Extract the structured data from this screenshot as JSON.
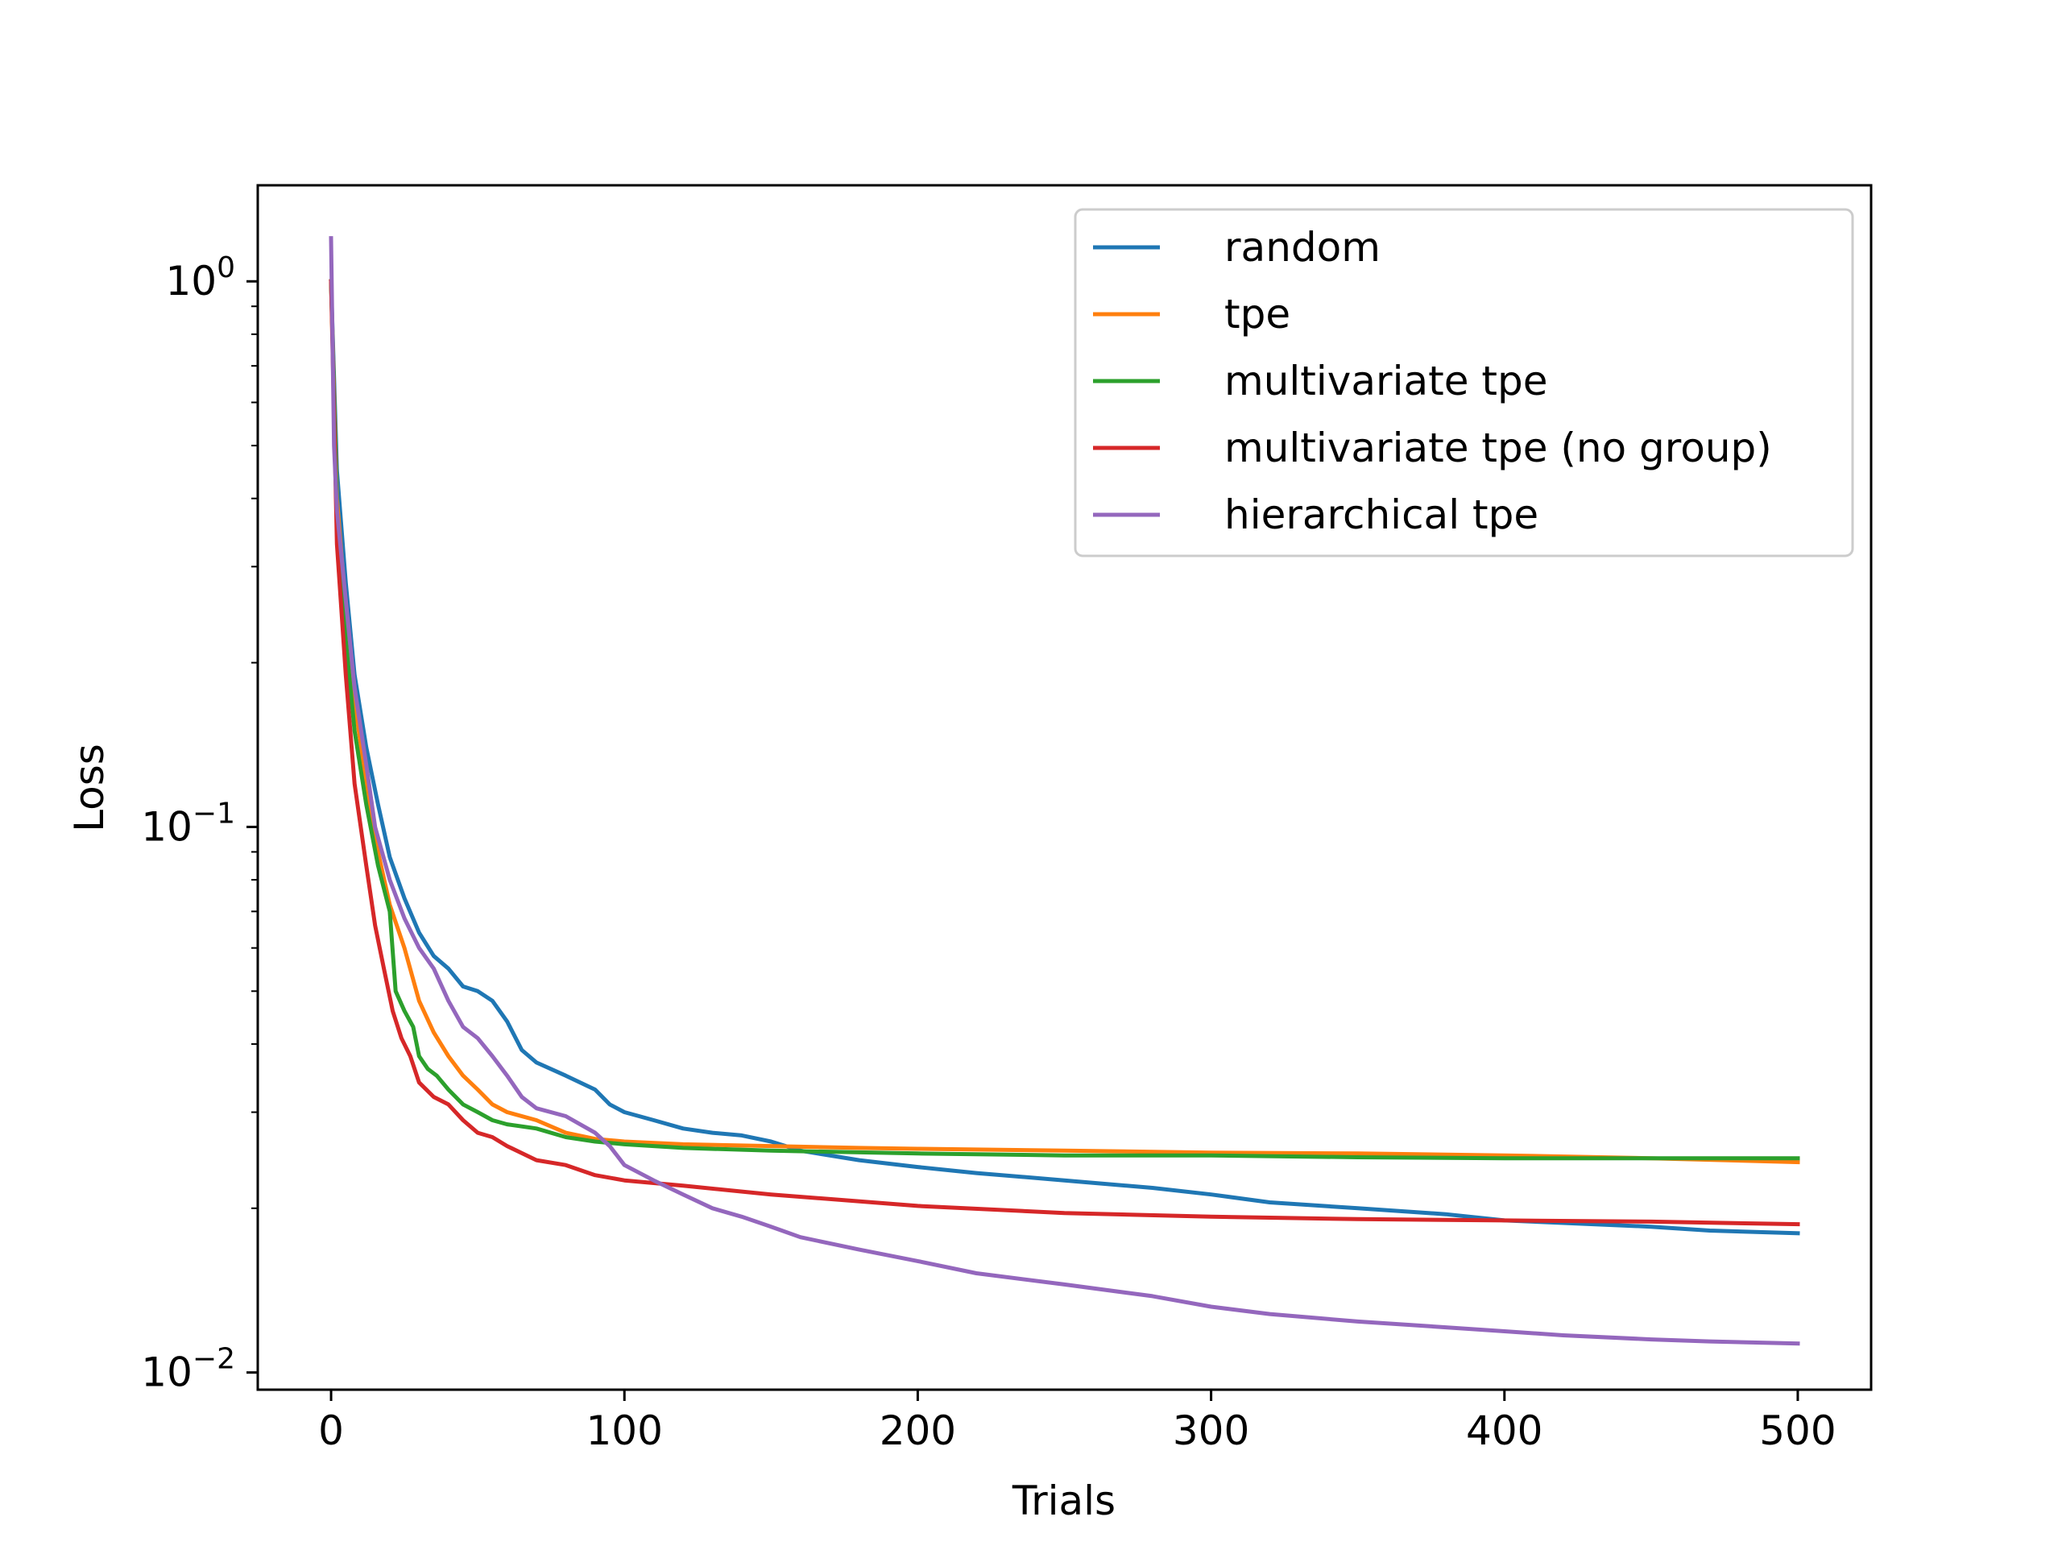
{
  "chart_data": {
    "type": "line",
    "title": "",
    "xlabel": "Trials",
    "ylabel": "Loss",
    "xlim": [
      -25,
      525
    ],
    "ylim": [
      0.0093,
      1.5
    ],
    "yscale": "log",
    "grid": false,
    "legend_position": "top-right",
    "x_ticks": [
      0,
      100,
      200,
      300,
      400,
      500
    ],
    "x_tick_labels": [
      "0",
      "100",
      "200",
      "300",
      "400",
      "500"
    ],
    "y_ticks": [
      1,
      0.1,
      0.01
    ],
    "y_tick_labels": [
      {
        "base": "10",
        "exp": "0"
      },
      {
        "base": "10",
        "exp": "−1"
      },
      {
        "base": "10",
        "exp": "−2"
      }
    ],
    "series": [
      {
        "name": "random",
        "color": "#1f77b4",
        "x": [
          0,
          2,
          5,
          8,
          12,
          16,
          20,
          25,
          30,
          35,
          40,
          45,
          50,
          55,
          60,
          65,
          70,
          80,
          90,
          95,
          100,
          110,
          120,
          130,
          140,
          150,
          160,
          180,
          200,
          220,
          250,
          280,
          300,
          320,
          350,
          380,
          400,
          420,
          450,
          470,
          500
        ],
        "y": [
          1.0,
          0.45,
          0.28,
          0.19,
          0.14,
          0.11,
          0.088,
          0.074,
          0.064,
          0.058,
          0.055,
          0.051,
          0.05,
          0.048,
          0.044,
          0.039,
          0.037,
          0.035,
          0.033,
          0.031,
          0.03,
          0.029,
          0.028,
          0.0275,
          0.0272,
          0.0265,
          0.0255,
          0.0245,
          0.0238,
          0.0232,
          0.0225,
          0.0218,
          0.0212,
          0.0205,
          0.02,
          0.0195,
          0.019,
          0.0188,
          0.0185,
          0.0182,
          0.018
        ]
      },
      {
        "name": "tpe",
        "color": "#ff7f0e",
        "x": [
          0,
          2,
          5,
          8,
          12,
          16,
          20,
          25,
          30,
          35,
          40,
          45,
          50,
          55,
          60,
          70,
          80,
          90,
          100,
          120,
          150,
          180,
          200,
          250,
          300,
          350,
          400,
          450,
          500
        ],
        "y": [
          1.0,
          0.4,
          0.25,
          0.17,
          0.12,
          0.09,
          0.072,
          0.06,
          0.048,
          0.042,
          0.038,
          0.035,
          0.033,
          0.031,
          0.03,
          0.029,
          0.0275,
          0.0268,
          0.0265,
          0.0262,
          0.026,
          0.0258,
          0.0257,
          0.0255,
          0.0253,
          0.0252,
          0.025,
          0.0247,
          0.0243
        ]
      },
      {
        "name": "multivariate tpe",
        "color": "#2ca02c",
        "x": [
          0,
          2,
          5,
          8,
          12,
          16,
          20,
          22,
          25,
          28,
          30,
          33,
          36,
          40,
          45,
          50,
          55,
          60,
          70,
          80,
          90,
          100,
          120,
          150,
          200,
          250,
          300,
          350,
          400,
          450,
          500
        ],
        "y": [
          1.0,
          0.38,
          0.22,
          0.15,
          0.11,
          0.085,
          0.07,
          0.05,
          0.046,
          0.043,
          0.038,
          0.036,
          0.035,
          0.033,
          0.031,
          0.03,
          0.029,
          0.0285,
          0.028,
          0.027,
          0.0265,
          0.0262,
          0.0258,
          0.0255,
          0.0252,
          0.025,
          0.025,
          0.0248,
          0.0247,
          0.0247,
          0.0247
        ]
      },
      {
        "name": "multivariate tpe (no group)",
        "color": "#d62728",
        "x": [
          0,
          2,
          5,
          8,
          12,
          15,
          18,
          21,
          24,
          27,
          30,
          35,
          40,
          45,
          50,
          55,
          60,
          70,
          80,
          90,
          100,
          120,
          150,
          200,
          250,
          300,
          350,
          400,
          450,
          500
        ],
        "y": [
          1.0,
          0.33,
          0.19,
          0.12,
          0.085,
          0.066,
          0.055,
          0.046,
          0.041,
          0.038,
          0.034,
          0.032,
          0.031,
          0.029,
          0.0275,
          0.027,
          0.026,
          0.0245,
          0.024,
          0.023,
          0.0225,
          0.022,
          0.0212,
          0.0202,
          0.0196,
          0.0193,
          0.0191,
          0.019,
          0.0189,
          0.0187
        ]
      },
      {
        "name": "hierarchical tpe",
        "color": "#9467bd",
        "x": [
          0,
          1,
          2,
          5,
          8,
          12,
          15,
          20,
          25,
          30,
          35,
          40,
          45,
          50,
          55,
          60,
          65,
          70,
          80,
          90,
          95,
          100,
          110,
          120,
          130,
          140,
          150,
          160,
          180,
          200,
          220,
          250,
          280,
          300,
          320,
          350,
          380,
          400,
          420,
          450,
          470,
          500
        ],
        "y": [
          1.2,
          0.5,
          0.38,
          0.26,
          0.18,
          0.13,
          0.1,
          0.08,
          0.068,
          0.06,
          0.055,
          0.048,
          0.043,
          0.041,
          0.038,
          0.035,
          0.032,
          0.0305,
          0.0295,
          0.0275,
          0.026,
          0.024,
          0.0225,
          0.0212,
          0.02,
          0.0193,
          0.0185,
          0.0177,
          0.0168,
          0.016,
          0.0152,
          0.0145,
          0.0138,
          0.0132,
          0.0128,
          0.0124,
          0.0121,
          0.0119,
          0.0117,
          0.0115,
          0.0114,
          0.0113
        ]
      }
    ]
  }
}
